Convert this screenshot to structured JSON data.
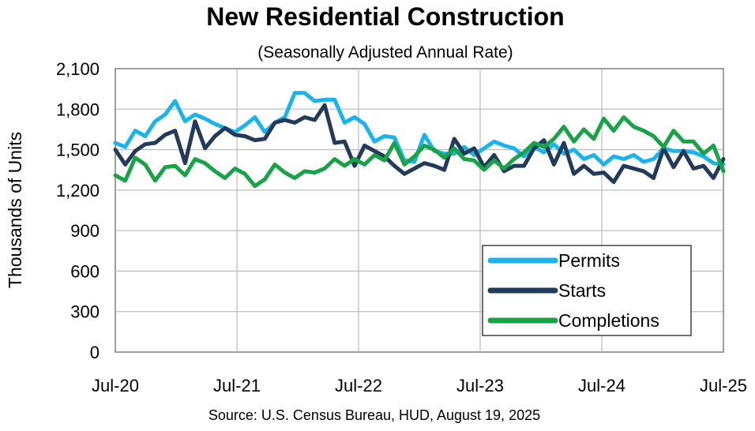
{
  "chart_data": {
    "type": "line",
    "title": "New Residential Construction",
    "subtitle": "(Seasonally Adjusted Annual Rate)",
    "ylabel": "Thousands of Units",
    "xlabel": "",
    "source": "Source:  U.S. Census Bureau, HUD, August 19, 2025",
    "ylim": [
      0,
      2100
    ],
    "ytick_values": [
      0,
      300,
      600,
      900,
      1200,
      1500,
      1800,
      2100
    ],
    "ytick_labels": [
      "0",
      "300",
      "600",
      "900",
      "1,200",
      "1,500",
      "1,800",
      "2,100"
    ],
    "xtick_labels": [
      "Jul-20",
      "Jul-21",
      "Jul-22",
      "Jul-23",
      "Jul-24",
      "Jul-25"
    ],
    "x_start": "Jul-20",
    "x_end": "Jul-25",
    "grid": true,
    "legend_position": "bottom-right",
    "series": [
      {
        "name": "Permits",
        "color": "#1BB3EC",
        "values": [
          1550,
          1520,
          1640,
          1600,
          1710,
          1760,
          1860,
          1710,
          1760,
          1730,
          1690,
          1660,
          1630,
          1680,
          1740,
          1630,
          1700,
          1740,
          1920,
          1920,
          1860,
          1870,
          1870,
          1700,
          1740,
          1690,
          1560,
          1600,
          1590,
          1420,
          1410,
          1610,
          1490,
          1470,
          1470,
          1520,
          1460,
          1510,
          1560,
          1530,
          1510,
          1450,
          1520,
          1480,
          1540,
          1470,
          1500,
          1430,
          1460,
          1390,
          1450,
          1430,
          1460,
          1410,
          1430,
          1510,
          1490,
          1490,
          1480,
          1450,
          1400,
          1390
        ]
      },
      {
        "name": "Starts",
        "color": "#233A5A",
        "values": [
          1500,
          1390,
          1490,
          1540,
          1550,
          1610,
          1640,
          1400,
          1710,
          1510,
          1600,
          1660,
          1610,
          1600,
          1570,
          1580,
          1700,
          1720,
          1700,
          1740,
          1720,
          1830,
          1550,
          1560,
          1380,
          1530,
          1490,
          1450,
          1380,
          1320,
          1360,
          1400,
          1380,
          1350,
          1580,
          1470,
          1510,
          1370,
          1460,
          1340,
          1380,
          1380,
          1510,
          1570,
          1390,
          1550,
          1320,
          1380,
          1320,
          1330,
          1260,
          1380,
          1360,
          1340,
          1290,
          1510,
          1370,
          1490,
          1360,
          1380,
          1290,
          1430
        ]
      },
      {
        "name": "Completions",
        "color": "#19A347",
        "values": [
          1310,
          1270,
          1440,
          1390,
          1270,
          1370,
          1380,
          1310,
          1430,
          1400,
          1340,
          1290,
          1360,
          1320,
          1230,
          1280,
          1390,
          1330,
          1290,
          1340,
          1330,
          1360,
          1430,
          1380,
          1430,
          1390,
          1460,
          1420,
          1550,
          1390,
          1450,
          1530,
          1500,
          1440,
          1510,
          1430,
          1420,
          1350,
          1420,
          1360,
          1430,
          1480,
          1550,
          1520,
          1580,
          1670,
          1560,
          1650,
          1580,
          1730,
          1640,
          1740,
          1670,
          1640,
          1600,
          1520,
          1640,
          1560,
          1560,
          1470,
          1530,
          1340
        ]
      }
    ]
  }
}
